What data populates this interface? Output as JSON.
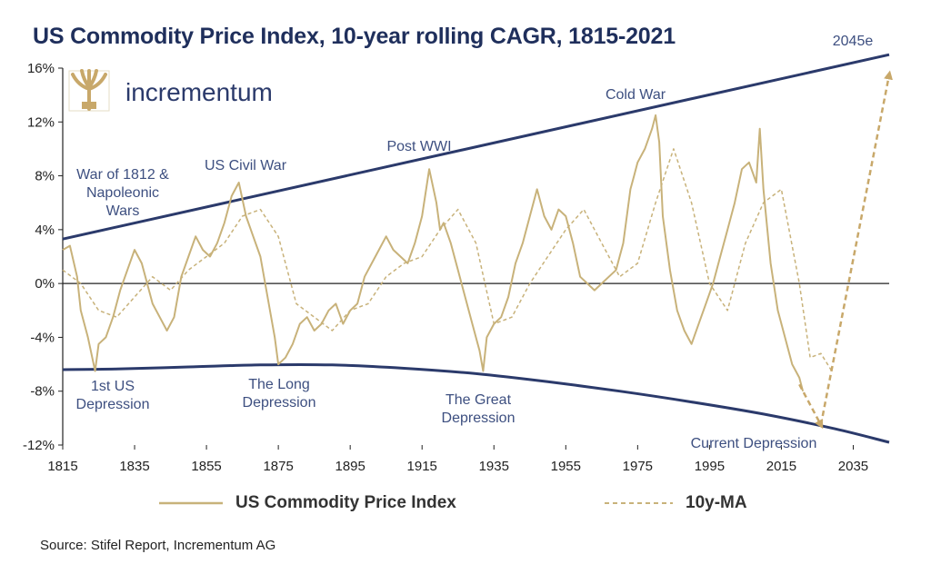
{
  "chart_data": {
    "type": "line",
    "title": "US Commodity Price Index, 10-year rolling CAGR, 1815-2021",
    "source": "Source: Stifel Report, Incrementum AG",
    "logo_text": "incrementum",
    "xlim": [
      1815,
      2045
    ],
    "ylim": [
      -12,
      16
    ],
    "x_ticks": [
      1815,
      1835,
      1855,
      1875,
      1895,
      1915,
      1935,
      1955,
      1975,
      1995,
      2015,
      2035
    ],
    "x_tick_labels": [
      "1815",
      "1835",
      "1855",
      "1875",
      "1895",
      "1915",
      "1935",
      "1955",
      "1975",
      "1995",
      "2015",
      "2035"
    ],
    "y_ticks": [
      16,
      12,
      8,
      4,
      0,
      -4,
      -8,
      -12
    ],
    "y_tick_labels": [
      "16%",
      "12%",
      "8%",
      "4%",
      "0%",
      "-4%",
      "-8%",
      "-12%"
    ],
    "series": [
      {
        "name": "US Commodity Price Index",
        "style": "solid",
        "color": "#c8b27a",
        "x": [
          1815,
          1817,
          1819,
          1820,
          1822,
          1824,
          1825,
          1827,
          1829,
          1831,
          1833,
          1835,
          1837,
          1838,
          1840,
          1842,
          1844,
          1846,
          1848,
          1850,
          1852,
          1854,
          1856,
          1858,
          1860,
          1862,
          1864,
          1866,
          1868,
          1870,
          1872,
          1874,
          1875,
          1877,
          1879,
          1881,
          1883,
          1885,
          1887,
          1889,
          1891,
          1893,
          1895,
          1897,
          1899,
          1901,
          1903,
          1905,
          1907,
          1909,
          1911,
          1913,
          1915,
          1917,
          1919,
          1920,
          1921,
          1923,
          1925,
          1927,
          1929,
          1931,
          1932,
          1933,
          1935,
          1937,
          1939,
          1941,
          1943,
          1945,
          1947,
          1949,
          1951,
          1953,
          1955,
          1957,
          1959,
          1961,
          1963,
          1965,
          1967,
          1969,
          1971,
          1973,
          1974,
          1975,
          1977,
          1979,
          1980,
          1981,
          1982,
          1984,
          1986,
          1988,
          1990,
          1992,
          1994,
          1996,
          1998,
          2000,
          2002,
          2004,
          2006,
          2008,
          2009,
          2010,
          2012,
          2014,
          2016,
          2018,
          2020,
          2021
        ],
        "values": [
          2.5,
          2.8,
          0.5,
          -2,
          -4,
          -6.5,
          -4.5,
          -4,
          -2.5,
          -0.5,
          1,
          2.5,
          1.5,
          0.5,
          -1.5,
          -2.5,
          -3.5,
          -2.5,
          0.5,
          2,
          3.5,
          2.5,
          2,
          3,
          4.5,
          6.5,
          7.5,
          5,
          3.5,
          2,
          -1,
          -4,
          -6,
          -5.5,
          -4.5,
          -3,
          -2.5,
          -3.5,
          -3,
          -2,
          -1.5,
          -3,
          -2,
          -1.5,
          0.5,
          1.5,
          2.5,
          3.5,
          2.5,
          2,
          1.5,
          3,
          5,
          8.5,
          6,
          4,
          4.5,
          3,
          1,
          -1,
          -3,
          -5,
          -6.5,
          -4,
          -3,
          -2.5,
          -1,
          1.5,
          3,
          5,
          7,
          5,
          4,
          5.5,
          5,
          3,
          0.5,
          0,
          -0.5,
          0,
          0.5,
          1,
          3,
          7,
          8,
          9,
          10,
          11.5,
          12.5,
          10.5,
          5,
          1,
          -2,
          -3.5,
          -4.5,
          -3,
          -1.5,
          0,
          2,
          4,
          6,
          8.5,
          9,
          7.5,
          11.5,
          7,
          1.5,
          -2,
          -4,
          -6,
          -7,
          -8
        ]
      },
      {
        "name": "10y-MA",
        "style": "dashed",
        "color": "#c8b27a",
        "x": [
          1815,
          1820,
          1825,
          1830,
          1835,
          1840,
          1845,
          1850,
          1855,
          1860,
          1865,
          1870,
          1875,
          1880,
          1885,
          1890,
          1895,
          1900,
          1905,
          1910,
          1915,
          1920,
          1925,
          1930,
          1935,
          1940,
          1945,
          1950,
          1955,
          1960,
          1965,
          1970,
          1975,
          1980,
          1985,
          1990,
          1995,
          2000,
          2005,
          2010,
          2015,
          2020,
          2023,
          2026,
          2029
        ],
        "values": [
          1,
          0,
          -2,
          -2.5,
          -1,
          0.5,
          -0.5,
          1,
          2,
          3,
          5,
          5.5,
          3.5,
          -1.5,
          -2.5,
          -3.5,
          -2,
          -1.5,
          0.5,
          1.5,
          2,
          4,
          5.5,
          3,
          -3,
          -2.5,
          0,
          2,
          4,
          5.5,
          3,
          0.5,
          1.5,
          6,
          10,
          6,
          0,
          -2,
          3,
          6,
          7,
          0,
          -5.5,
          -5.2,
          -6.5
        ]
      }
    ],
    "annotations": [
      {
        "text": "War of 1812 &\nNapoleonic\nWars",
        "color": "#3d4f80"
      },
      {
        "text": "US Civil War",
        "color": "#3d4f80"
      },
      {
        "text": "Post WWI",
        "color": "#3d4f80"
      },
      {
        "text": "Cold War",
        "color": "#3d4f80"
      },
      {
        "text": "2045e",
        "color": "#3d4f80"
      },
      {
        "text": "1st US\nDepression",
        "color": "#3d4f80"
      },
      {
        "text": "The Long\nDepression",
        "color": "#3d4f80"
      },
      {
        "text": "The Great\nDepression",
        "color": "#3d4f80"
      },
      {
        "text": "Current Depression",
        "color": "#3d4f80"
      }
    ],
    "trend_lines": [
      {
        "name": "upper",
        "x": [
          1815,
          2045
        ],
        "values": [
          3.3,
          17
        ],
        "color": "#2b3a6b"
      },
      {
        "name": "lower",
        "x": [
          1815,
          1830,
          1850,
          1870,
          1890,
          1910,
          1930,
          1950,
          1970,
          1990,
          2010,
          2030,
          2045
        ],
        "values": [
          -6.4,
          -6.35,
          -6.2,
          -6.05,
          -6.05,
          -6.3,
          -6.7,
          -7.3,
          -8.0,
          -8.8,
          -9.7,
          -10.8,
          -11.8
        ],
        "color": "#2b3a6b"
      }
    ],
    "projection": {
      "x": [
        2020,
        2026,
        2045
      ],
      "values": [
        -7.5,
        -10.5,
        15.5
      ],
      "color": "#c8a86a"
    },
    "grid": false,
    "legend_position": "bottom"
  },
  "legend": {
    "series1_label": "US Commodity Price Index",
    "series2_label": "10y-MA"
  }
}
